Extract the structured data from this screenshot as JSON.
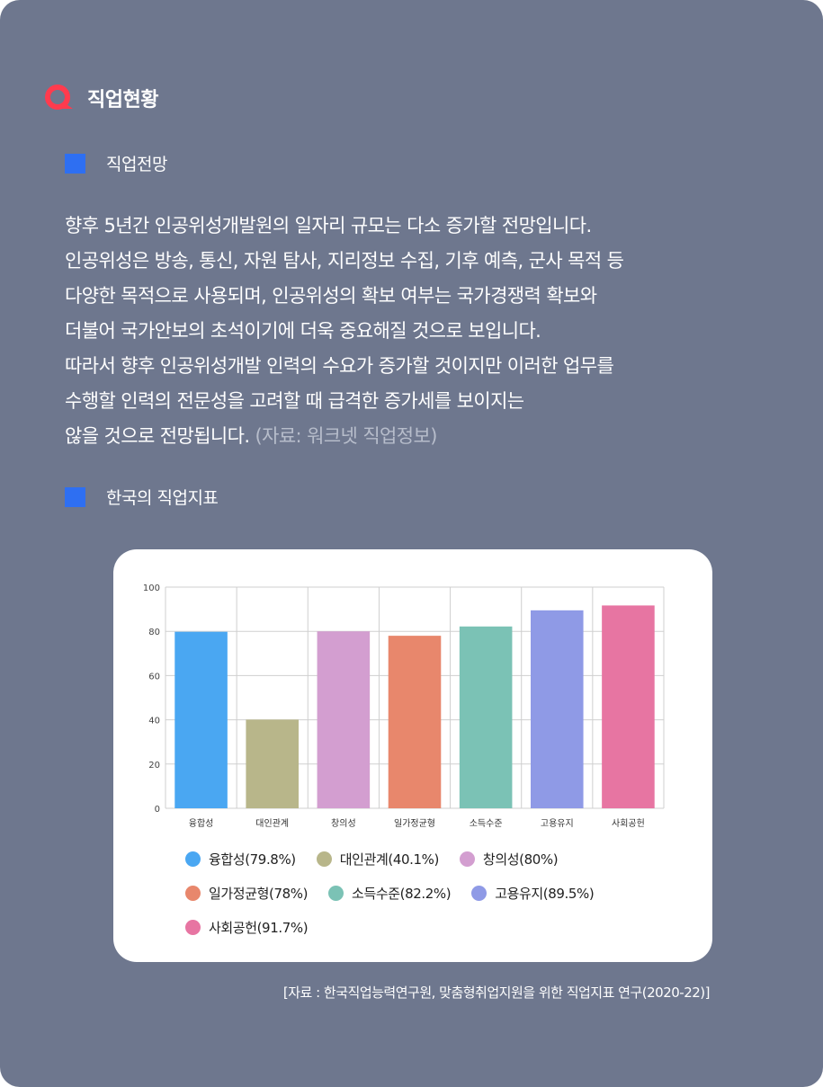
{
  "header": {
    "title": "직업현황",
    "icon": "search-icon",
    "icon_color": "#ff3b4e"
  },
  "sections": {
    "outlook": {
      "title": "직업전망"
    },
    "indicators": {
      "title": "한국의 직업지표"
    }
  },
  "body": {
    "lines": [
      "향후 5년간 인공위성개발원의 일자리 규모는 다소 증가할 전망입니다.",
      "인공위성은 방송, 통신, 자원 탐사, 지리정보 수집, 기후 예측, 군사 목적 등",
      "다양한 목적으로 사용되며, 인공위성의 확보 여부는 국가경쟁력 확보와",
      "더불어 국가안보의 초석이기에 더욱 중요해질 것으로 보입니다.",
      "따라서 향후 인공위성개발 인력의 수요가 증가할 것이지만 이러한 업무를",
      "수행할 인력의 전문성을 고려할 때 급격한 증가세를 보이지는"
    ],
    "last_line": "않을 것으로 전망됩니다.",
    "source": " (자료: 워크넷 직업정보)"
  },
  "chart_data": {
    "type": "bar",
    "categories": [
      "융합성",
      "대인관계",
      "창의성",
      "일가정균형",
      "소득수준",
      "고용유지",
      "사회공헌"
    ],
    "values": [
      79.8,
      40.1,
      80,
      78,
      82.2,
      89.5,
      91.7
    ],
    "colors": [
      "#4aa7f2",
      "#b8b68a",
      "#d39ed0",
      "#e8876c",
      "#7bc2b5",
      "#8f9ae6",
      "#e775a2"
    ],
    "ylim": [
      0,
      100
    ],
    "yticks": [
      "0",
      "20",
      "40",
      "60",
      "80",
      "100"
    ],
    "grid": true,
    "legend": [
      "융합성(79.8%)",
      "대인관계(40.1%)",
      "창의성(80%)",
      "일가정균형(78%)",
      "소득수준(82.2%)",
      "고용유지(89.5%)",
      "사회공헌(91.7%)"
    ],
    "legend_placement": "bottom"
  },
  "footer": {
    "source": "[자료 : 한국직업능력연구원, 맞춤형취업지원을 위한 직업지표 연구(2020-22)]"
  }
}
